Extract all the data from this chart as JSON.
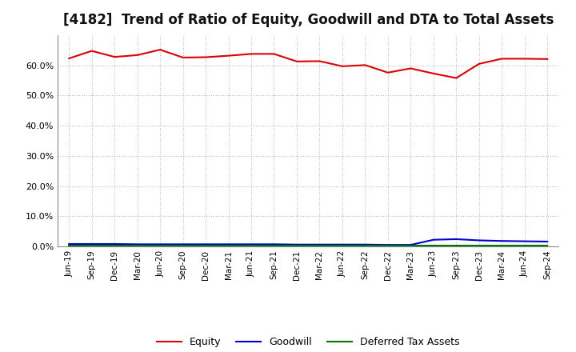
{
  "title": "[4182]  Trend of Ratio of Equity, Goodwill and DTA to Total Assets",
  "labels": [
    "Jun-19",
    "Sep-19",
    "Dec-19",
    "Mar-20",
    "Jun-20",
    "Sep-20",
    "Dec-20",
    "Mar-21",
    "Jun-21",
    "Sep-21",
    "Dec-21",
    "Mar-22",
    "Jun-22",
    "Sep-22",
    "Dec-22",
    "Mar-23",
    "Jun-23",
    "Sep-23",
    "Dec-23",
    "Mar-24",
    "Jun-24",
    "Sep-24"
  ],
  "equity": [
    0.623,
    0.648,
    0.628,
    0.634,
    0.652,
    0.626,
    0.627,
    0.632,
    0.638,
    0.638,
    0.613,
    0.614,
    0.597,
    0.601,
    0.576,
    0.59,
    0.573,
    0.558,
    0.605,
    0.622,
    0.622,
    0.621
  ],
  "goodwill": [
    0.008,
    0.008,
    0.008,
    0.007,
    0.007,
    0.007,
    0.007,
    0.007,
    0.007,
    0.007,
    0.006,
    0.006,
    0.006,
    0.006,
    0.005,
    0.005,
    0.022,
    0.024,
    0.02,
    0.018,
    0.017,
    0.016
  ],
  "dta": [
    0.003,
    0.003,
    0.003,
    0.003,
    0.003,
    0.003,
    0.003,
    0.003,
    0.003,
    0.003,
    0.003,
    0.003,
    0.003,
    0.003,
    0.003,
    0.003,
    0.003,
    0.003,
    0.003,
    0.003,
    0.003,
    0.003
  ],
  "equity_color": "#dd0000",
  "goodwill_color": "#0000cc",
  "dta_color": "#007700",
  "background_color": "#ffffff",
  "grid_color": "#bbbbbb",
  "ylim": [
    0.0,
    0.7
  ],
  "yticks": [
    0.0,
    0.1,
    0.2,
    0.3,
    0.4,
    0.5,
    0.6
  ],
  "title_fontsize": 12,
  "legend_labels": [
    "Equity",
    "Goodwill",
    "Deferred Tax Assets"
  ]
}
